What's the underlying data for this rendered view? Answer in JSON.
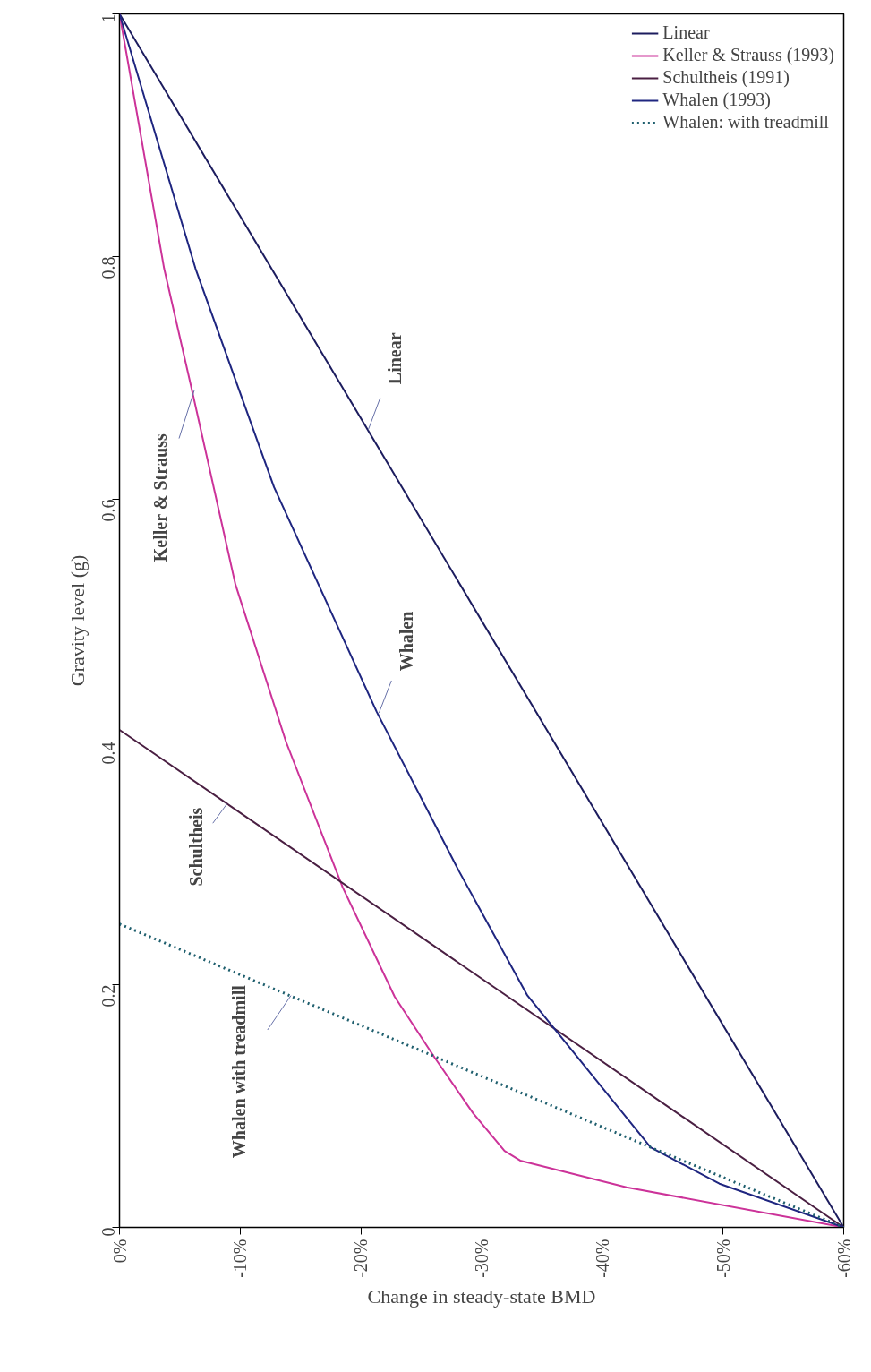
{
  "chart_data": {
    "type": "line",
    "xlabel": "Change in steady-state BMD",
    "ylabel": "Gravity level (g)",
    "xlim": [
      0,
      -60
    ],
    "ylim": [
      0,
      1
    ],
    "xticks": [
      {
        "value": 0,
        "label": "0%"
      },
      {
        "value": -10,
        "label": "-10%"
      },
      {
        "value": -20,
        "label": "-20%"
      },
      {
        "value": -30,
        "label": "-30%"
      },
      {
        "value": -40,
        "label": "-40%"
      },
      {
        "value": -50,
        "label": "-50%"
      },
      {
        "value": -60,
        "label": "-60%"
      }
    ],
    "yticks": [
      0,
      0.2,
      0.4,
      0.6,
      0.8,
      1
    ],
    "grid": false,
    "legend": "top right",
    "series": [
      {
        "name": "Linear",
        "color": "#1c1c5e",
        "x": [
          0,
          -60
        ],
        "values": [
          1,
          0
        ]
      },
      {
        "name": "Keller & Strauss (1993)",
        "color": "#cc3399",
        "x": [
          0,
          -3.7,
          -6.0,
          -9.6,
          -13.8,
          -18.5,
          -22.8,
          -26.1,
          -29.3,
          -31.9,
          -33.2,
          -42.0,
          -60
        ],
        "values": [
          1,
          0.79,
          0.69,
          0.53,
          0.4,
          0.28,
          0.19,
          0.14,
          0.094,
          0.063,
          0.055,
          0.033,
          0
        ]
      },
      {
        "name": "Schultheis (1991)",
        "color": "#4a1f42",
        "x": [
          0,
          -60
        ],
        "values": [
          0.41,
          0
        ]
      },
      {
        "name": "Whalen (1993)",
        "color": "#1f2680",
        "x": [
          0,
          -6.3,
          -12.8,
          -21.3,
          -28.1,
          -33.8,
          -44.0,
          -49.7,
          -60
        ],
        "values": [
          1,
          0.79,
          0.61,
          0.425,
          0.294,
          0.191,
          0.066,
          0.036,
          0
        ]
      },
      {
        "name": "Whalen: with treadmill",
        "color": "#1f5f6e",
        "line_style": "dotted",
        "x": [
          0,
          -44.0,
          -60
        ],
        "values": [
          0.25,
          0.066,
          0
        ]
      }
    ],
    "annotations": [
      {
        "text": "Linear",
        "x": -20.6,
        "y": 0.657
      },
      {
        "text": "Keller & Strauss",
        "x": -6.2,
        "y": 0.69
      },
      {
        "text": "Whalen",
        "x": -21.5,
        "y": 0.424
      },
      {
        "text": "Schultheis",
        "x": -8.9,
        "y": 0.349
      },
      {
        "text": "Whalen with treadmill",
        "x": -14.2,
        "y": 0.191
      }
    ]
  }
}
